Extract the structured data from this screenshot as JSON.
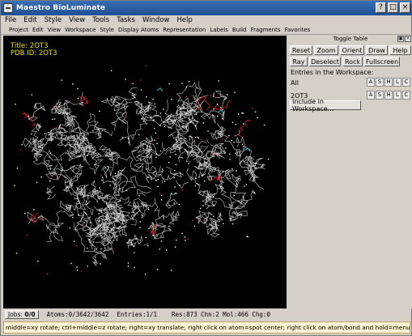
{
  "window": {
    "title": "Maestro BioLuminate",
    "buttons": [
      "?",
      "□",
      "×"
    ]
  },
  "menubar": [
    "File",
    "Edit",
    "Style",
    "View",
    "Tools",
    "Tasks",
    "Window",
    "Help"
  ],
  "toolbar": [
    "Project",
    "Edit",
    "View",
    "Workspace",
    "Style",
    "Display Atoms",
    "Representation",
    "Labels",
    "Build",
    "Fragments",
    "Favorites"
  ],
  "viewport": {
    "title": "Title: 2OT3",
    "pdb": "PDB ID: 2OT3",
    "label_color": "#e8e000"
  },
  "panel": {
    "header": "Toggle Table",
    "row1": [
      "Reset",
      "Zoom",
      "Orient",
      "Draw",
      "Help"
    ],
    "row2": [
      "Ray",
      "Deselect",
      "Rock",
      "Fullscreen"
    ],
    "entries_label": "Entries in the Workspace:",
    "all_label": "All",
    "entry_name": "2OT3",
    "style_buttons": [
      "A",
      "S",
      "H",
      "L",
      "C"
    ],
    "include_button": "Include in Workspace..."
  },
  "status": {
    "jobs_label": "Jobs:",
    "jobs_value": "0/0",
    "atoms": "Atoms:0/3642/3642",
    "entries": "Entries:1/1",
    "res": "Res:873 Chn:2 Mol:466 Chg:0"
  },
  "hint": "middle=xy rotate; ctrl+middle=z rotate; right=xy translate; right click on atom=spot center; right click on atom/bond and hold=menu"
}
